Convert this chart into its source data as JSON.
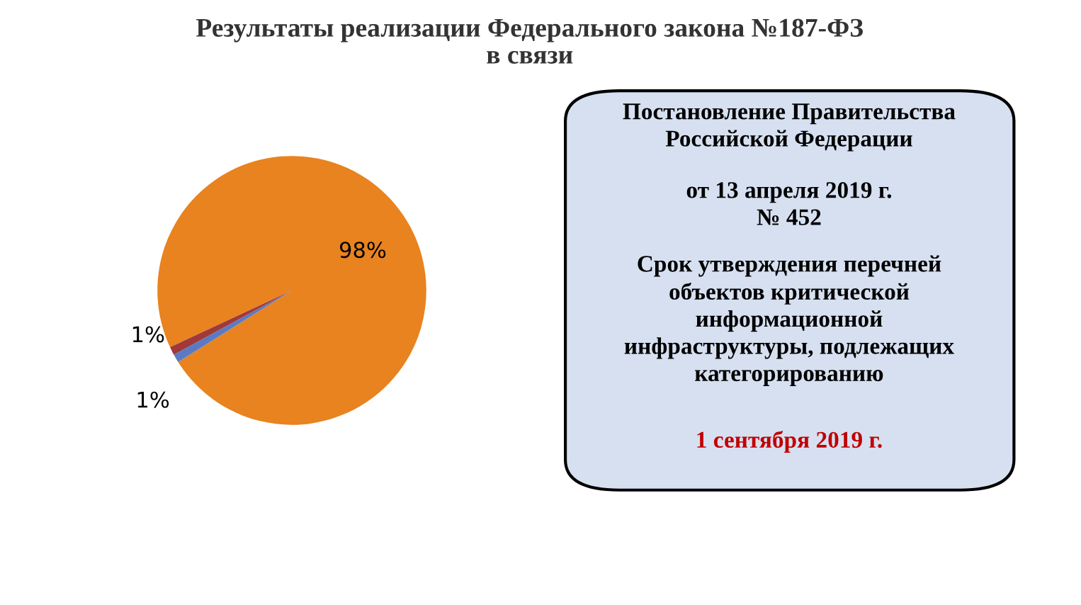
{
  "chart_data": {
    "type": "pie",
    "title": "Результаты реализации Федерального закона №187-ФЗ\nв связи",
    "categories": [
      null,
      null,
      null
    ],
    "values": [
      98,
      1,
      1
    ],
    "colors": [
      "#e8831f",
      "#5a7bc4",
      "#a0393a"
    ],
    "value_labels": [
      "98%",
      "1%",
      "1%"
    ],
    "legend": false,
    "annotations": [
      "Постановление Правительства\nРоссийской Федерации",
      "от 13 апреля 2019 г.\n№ 452",
      "Срок утверждения перечней\nобъектов критической\nинформационной\nинфраструктуры, подлежащих\nкатегорированию",
      "1 сентября 2019 г."
    ]
  }
}
